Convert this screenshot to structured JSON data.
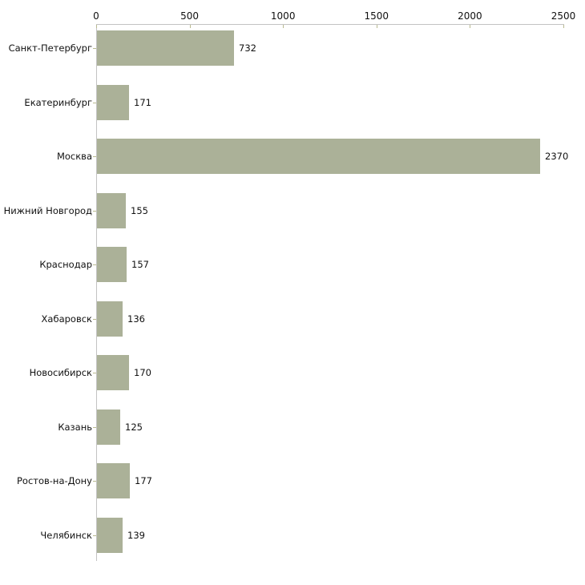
{
  "chart_data": {
    "type": "bar",
    "orientation": "horizontal",
    "title": "",
    "xlabel": "",
    "ylabel": "",
    "categories": [
      "Санкт-Петербург",
      "Екатеринбург",
      "Москва",
      "Нижний Новгород",
      "Краснодар",
      "Хабаровск",
      "Новосибирск",
      "Казань",
      "Ростов-на-Дону",
      "Челябинск"
    ],
    "values": [
      732,
      171,
      2370,
      155,
      157,
      136,
      170,
      125,
      177,
      139
    ],
    "value_labels": [
      "732",
      "171",
      "2370",
      "155",
      "157",
      "136",
      "170",
      "125",
      "177",
      "139"
    ],
    "x_axis": {
      "position": "top",
      "range": [
        0,
        2500
      ],
      "tick_values": [
        0,
        500,
        1000,
        1500,
        2000,
        2500
      ],
      "tick_labels": [
        "0",
        "500",
        "1000",
        "1500",
        "2000",
        "2500"
      ]
    },
    "legend": null,
    "grid": false,
    "colors": {
      "bar_fill": "#abb198",
      "axis_line": "#c3c3c3",
      "tick_mark": "#b9ba90",
      "label_text": "#111111",
      "background": "#ffffff"
    }
  }
}
